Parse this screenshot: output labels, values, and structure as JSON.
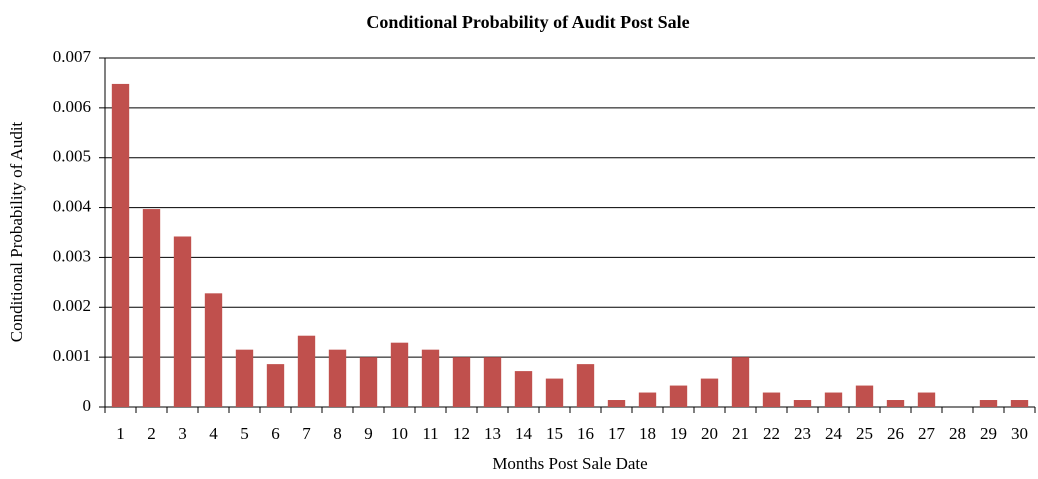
{
  "chart_data": {
    "type": "bar",
    "title": "Conditional Probability of Audit Post Sale",
    "x_label": "Months Post Sale Date",
    "y_label": "Conditional Probability of Audit",
    "categories": [
      "1",
      "2",
      "3",
      "4",
      "5",
      "6",
      "7",
      "8",
      "9",
      "10",
      "11",
      "12",
      "13",
      "14",
      "15",
      "16",
      "17",
      "18",
      "19",
      "20",
      "21",
      "22",
      "23",
      "24",
      "25",
      "26",
      "27",
      "28",
      "29",
      "30"
    ],
    "values": [
      0.00648,
      0.00397,
      0.00342,
      0.00228,
      0.00115,
      0.00086,
      0.00143,
      0.00115,
      0.001,
      0.00129,
      0.00115,
      0.001,
      0.001,
      0.00072,
      0.00057,
      0.00086,
      0.00014,
      0.00029,
      0.00043,
      0.00057,
      0.001,
      0.00029,
      0.00014,
      0.00029,
      0.00043,
      0.00014,
      0.00029,
      0,
      0.00014,
      0.00014
    ],
    "color": "#c0504d",
    "ylim": [
      0,
      0.007
    ],
    "yticks": [
      0,
      0.001,
      0.002,
      0.003,
      0.004,
      0.005,
      0.006,
      0.007
    ],
    "grid": true
  }
}
